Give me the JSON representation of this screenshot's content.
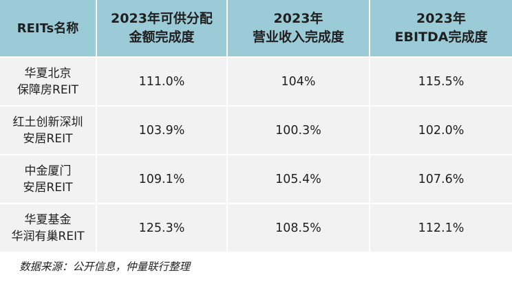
{
  "chart_data": {
    "type": "table",
    "columns": [
      {
        "lines": [
          "REITs名称"
        ]
      },
      {
        "lines": [
          "2023年可供分配",
          "金额完成度"
        ]
      },
      {
        "lines": [
          "2023年",
          "营业收入完成度"
        ]
      },
      {
        "lines": [
          "2023年",
          "EBITDA完成度"
        ]
      }
    ],
    "rows": [
      {
        "name_lines": [
          "华夏北京",
          "保障房REIT"
        ],
        "values": [
          "111.0%",
          "104%",
          "115.5%"
        ]
      },
      {
        "name_lines": [
          "红土创新深圳",
          "安居REIT"
        ],
        "values": [
          "103.9%",
          "100.3%",
          "102.0%"
        ]
      },
      {
        "name_lines": [
          "中金厦门",
          "安居REIT"
        ],
        "values": [
          "109.1%",
          "105.4%",
          "107.6%"
        ]
      },
      {
        "name_lines": [
          "华夏基金",
          "华润有巢REIT"
        ],
        "values": [
          "125.3%",
          "108.5%",
          "112.1%"
        ]
      }
    ],
    "source": "数据来源：公开信息，仲量联行整理",
    "colors": {
      "header_bg": "#9ccbd8",
      "row_bg": "#f2f2f2",
      "grid": "#ffffff"
    }
  }
}
